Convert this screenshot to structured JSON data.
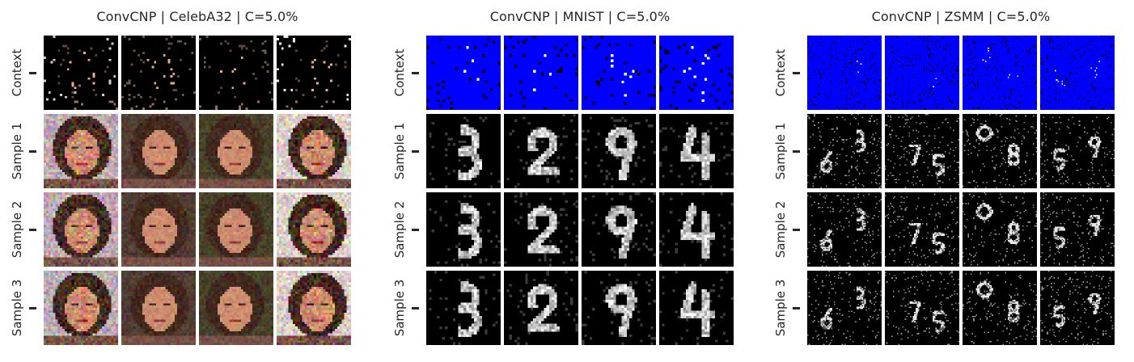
{
  "panels": [
    {
      "title": "ConvCNP | CelebA32 | C=5.0%",
      "dataset": "CelebA32",
      "colors": {
        "context_bg": "#000000"
      }
    },
    {
      "title": "ConvCNP | MNIST | C=5.0%",
      "dataset": "MNIST",
      "colors": {
        "context_bg": "#0000ff"
      }
    },
    {
      "title": "ConvCNP | ZSMM | C=5.0%",
      "dataset": "ZSMM",
      "colors": {
        "context_bg": "#0000ff"
      }
    }
  ],
  "row_labels": [
    "Context",
    "Sample 1",
    "Sample 2",
    "Sample 3"
  ],
  "images_per_row": 4
}
